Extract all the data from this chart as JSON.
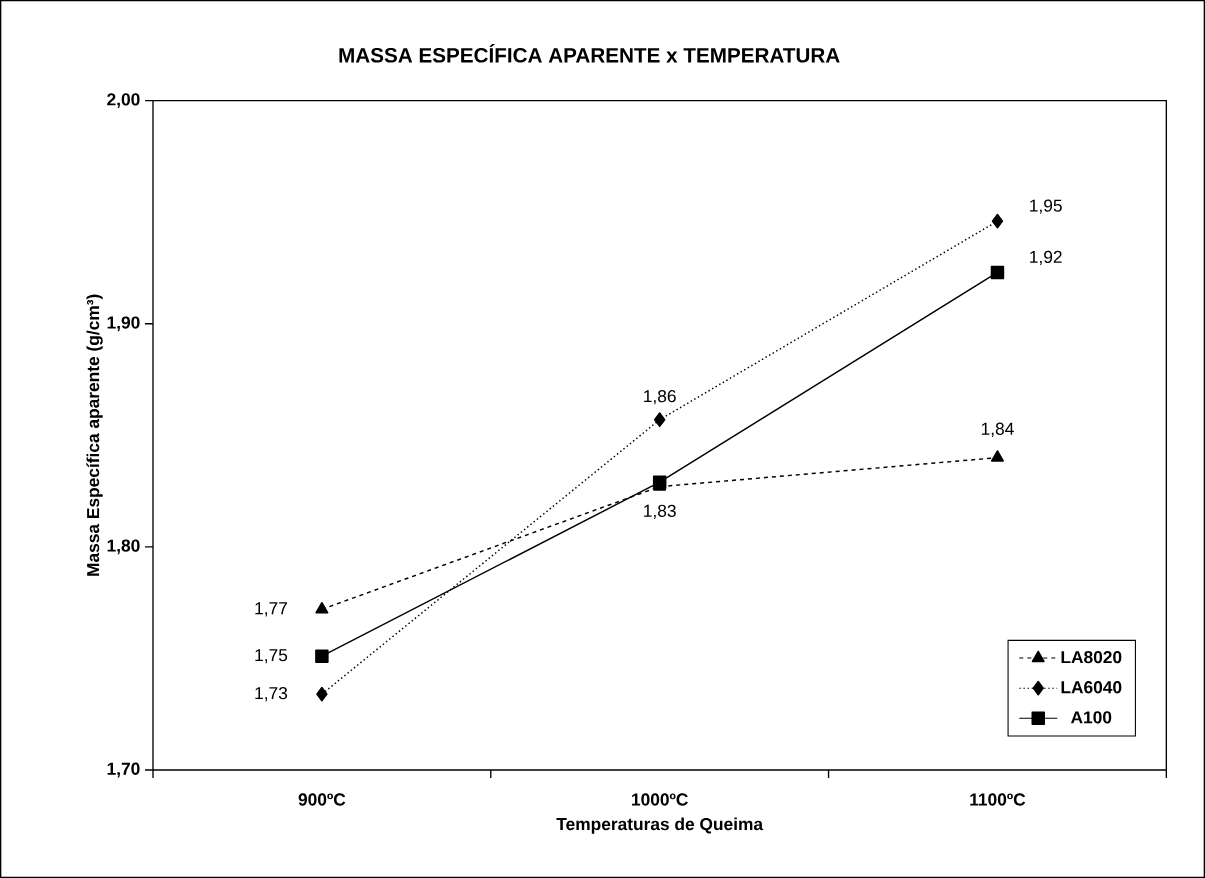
{
  "chart_data": {
    "type": "line",
    "title": "MASSA ESPECÍFICA APARENTE x TEMPERATURA",
    "xlabel": "Temperaturas de Queima",
    "ylabel": "Massa Específica aparente (g/cm³)",
    "categories": [
      "900ºC",
      "1000ºC",
      "1100ºC"
    ],
    "series": [
      {
        "name": "LA8020",
        "color": "#000000",
        "marker": "triangle",
        "line_style": "dashed",
        "values": [
          1.772,
          1.827,
          1.84
        ],
        "value_labels": [
          "1,77",
          "1,83",
          "1,84"
        ]
      },
      {
        "name": "LA6040",
        "color": "#000000",
        "marker": "diamond",
        "line_style": "dotted",
        "values": [
          1.734,
          1.857,
          1.946
        ],
        "value_labels": [
          "1,73",
          "1,86",
          "1,95"
        ]
      },
      {
        "name": "A100",
        "color": "#000000",
        "marker": "square",
        "line_style": "solid",
        "values": [
          1.751,
          1.829,
          1.923
        ],
        "value_labels": [
          "1,75",
          null,
          "1,92"
        ]
      }
    ],
    "ylim": [
      1.7,
      2.0
    ],
    "yticks": [
      {
        "value": 1.7,
        "label": "1,70"
      },
      {
        "value": 1.8,
        "label": "1,80"
      },
      {
        "value": 1.9,
        "label": "1,90"
      },
      {
        "value": 2.0,
        "label": "2,00"
      }
    ],
    "grid": false,
    "legend": "bottom right"
  }
}
